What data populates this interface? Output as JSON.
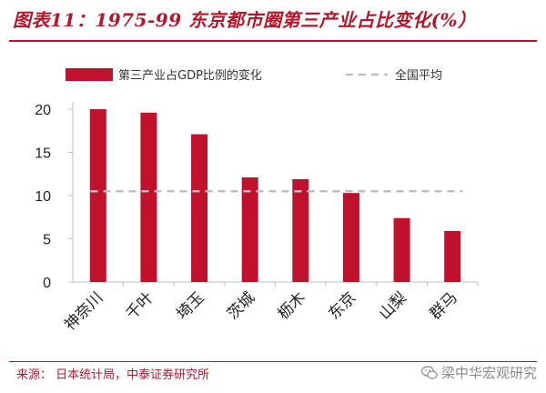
{
  "title": "图表11：1975-99 东京都市圈第三产业占比变化(%）",
  "source": "来源：  日本统计局，中泰证券研究所",
  "watermark": "梁中华宏观研究",
  "colors": {
    "bar": "#c0122c",
    "avg": "#bfbfbf",
    "title": "#b5172a",
    "axis": "#bfbfbf"
  },
  "chart_data": {
    "type": "bar",
    "categories": [
      "神奈川",
      "千叶",
      "埼玉",
      "茨城",
      "枥木",
      "东京",
      "山梨",
      "群马"
    ],
    "series": [
      {
        "name": "第三产业占GDP比例的变化",
        "values": [
          20.0,
          19.6,
          17.1,
          12.1,
          11.9,
          10.3,
          7.4,
          5.9
        ]
      }
    ],
    "reference_lines": [
      {
        "name": "全国平均",
        "value": 10.5,
        "style": "dashed"
      }
    ],
    "ylim": [
      0,
      20
    ],
    "yticks": [
      0,
      5,
      10,
      15,
      20
    ],
    "legend": "top",
    "title": "1975-99 东京都市圈第三产业占比变化(%）",
    "xlabel": "",
    "ylabel": ""
  }
}
